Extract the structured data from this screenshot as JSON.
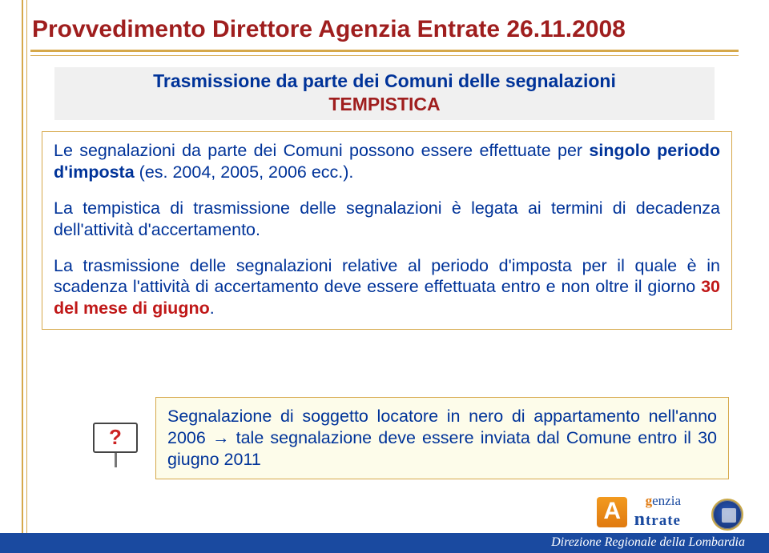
{
  "title": "Provvedimento Direttore Agenzia Entrate 26.11.2008",
  "subtitle": {
    "line1": "Trasmissione da parte dei Comuni delle segnalazioni",
    "line2": "TEMPISTICA"
  },
  "para1": {
    "pre": "Le segnalazioni da parte dei Comuni possono essere effettuate per ",
    "bold": "singolo periodo d'imposta",
    "post": " (es. 2004, 2005, 2006 ecc.)."
  },
  "para2": "La tempistica di trasmissione delle segnalazioni è legata ai termini di decadenza dell'attività d'accertamento.",
  "para3": {
    "pre": "La trasmissione delle segnalazioni relative al periodo d'imposta per il quale è in scadenza l'attività di accertamento deve essere effettuata entro e non oltre il giorno ",
    "bold": "30 del mese di giugno",
    "post": "."
  },
  "question_mark": "?",
  "callout": {
    "t1": "Segnalazione di soggetto locatore in nero di appartamento nell'anno 2006 ",
    "arrow": "→",
    "t2": " tale segnalazione deve essere inviata dal Comune entro il 30 giugno 2011"
  },
  "logo": {
    "mark": "A",
    "word1_orange": "g",
    "word1_rest": "enzia",
    "word2_orange": "n",
    "word2_rest": "trate"
  },
  "footer_text": "Direzione Regionale della Lombardia"
}
